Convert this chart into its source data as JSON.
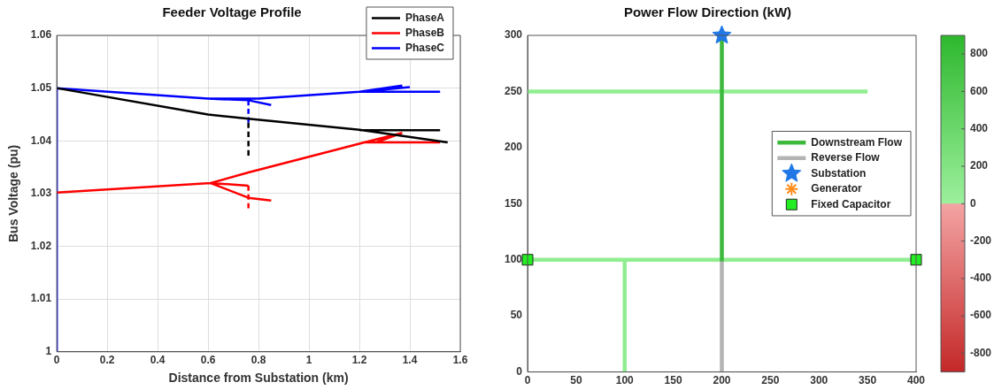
{
  "chart_data": [
    {
      "type": "line",
      "title": "Feeder Voltage Profile",
      "xlabel": "Distance from Substation (km)",
      "ylabel": "Bus Voltage (pu)",
      "xlim": [
        0,
        1.6
      ],
      "xticks": [
        0,
        0.2,
        0.4,
        0.6,
        0.8,
        1,
        1.2,
        1.4,
        1.6
      ],
      "ylim": [
        1,
        1.06
      ],
      "yticks": [
        1,
        1.01,
        1.02,
        1.03,
        1.04,
        1.05,
        1.06
      ],
      "grid": true,
      "legend": "top right",
      "marker": "none",
      "series": [
        {
          "name": "PhaseA",
          "color": "#000000",
          "x": [
            0,
            0.6,
            0.76,
            1.2,
            1.55,
            null,
            1.2,
            1.52
          ],
          "values": [
            1.05,
            1.045,
            1.0442,
            1.0421,
            1.0397,
            null,
            1.042,
            1.042
          ]
        },
        {
          "name": "PhaseB",
          "color": "#ff0000",
          "x": [
            0,
            0.61,
            0.76,
            1.22,
            1.37,
            null,
            1.22,
            1.52,
            null,
            1.37,
            1.27,
            null,
            0.61,
            0.76,
            null,
            0.61,
            0.76,
            0.85
          ],
          "values": [
            1.0302,
            1.032,
            1.034,
            1.0397,
            1.0415,
            null,
            1.0397,
            1.0397,
            null,
            1.0415,
            1.0398,
            null,
            1.032,
            1.0315,
            null,
            1.032,
            1.0292,
            1.0287
          ]
        },
        {
          "name": "PhaseC",
          "color": "#0000ff",
          "x": [
            0,
            0,
            0.6,
            0.76,
            0.85,
            null,
            0.6,
            0.8,
            1.2,
            1.37,
            null,
            1.2,
            1.52,
            null,
            1.25,
            1.4
          ],
          "values": [
            1,
            1.05,
            1.048,
            1.0477,
            1.0468,
            null,
            1.048,
            1.048,
            1.0493,
            1.0505,
            null,
            1.0493,
            1.0493,
            null,
            1.0495,
            1.0502
          ]
        },
        {
          "color": "#0000ff",
          "line_style": "dashed",
          "x": [
            0.76,
            0.76
          ],
          "values": [
            1.0477,
            1.0435
          ]
        },
        {
          "color": "#000000",
          "line_style": "dashed",
          "x": [
            0.76,
            0.76
          ],
          "values": [
            1.0435,
            1.0372
          ]
        },
        {
          "color": "#ff0000",
          "line_style": "dashed",
          "x": [
            0.76,
            0.76
          ],
          "values": [
            1.0315,
            1.0272
          ]
        }
      ]
    },
    {
      "type": "line",
      "title": "Power Flow Direction (kW)",
      "xlim": [
        0,
        400
      ],
      "xticks": [
        0,
        50,
        100,
        150,
        200,
        250,
        300,
        350,
        400
      ],
      "ylim": [
        0,
        300
      ],
      "yticks": [
        0,
        50,
        100,
        150,
        200,
        250,
        300
      ],
      "legend": "right",
      "marker": "none",
      "clim": [
        -900,
        900
      ],
      "cticks": [
        -800,
        -600,
        -400,
        -200,
        0,
        200,
        400,
        600,
        800
      ],
      "series": [
        {
          "name": "Downstream Flow",
          "color": "#3cb93c",
          "x": [
            200,
            200
          ],
          "values": [
            300,
            100
          ]
        },
        {
          "name": "Reverse Flow",
          "color": "#b4b4b4",
          "x": [
            200,
            200
          ],
          "values": [
            100,
            0
          ]
        },
        {
          "name": "Substation",
          "type": "scatter",
          "marker": "star",
          "color": "#1f78e6",
          "x": [
            200
          ],
          "values": [
            300
          ]
        },
        {
          "name": "Generator",
          "type": "scatter",
          "marker": "cross",
          "color": "#ff8c1a"
        },
        {
          "name": "Fixed Capacitor",
          "type": "scatter",
          "marker": "square",
          "color": "#22ee22",
          "x": [
            0,
            400
          ],
          "values": [
            100,
            100
          ]
        },
        {
          "color": "#90ee90",
          "x": [
            0,
            350,
            null,
            0,
            400,
            null,
            100,
            100
          ],
          "values": [
            250,
            250,
            null,
            100,
            100,
            null,
            100,
            0
          ]
        }
      ]
    }
  ]
}
